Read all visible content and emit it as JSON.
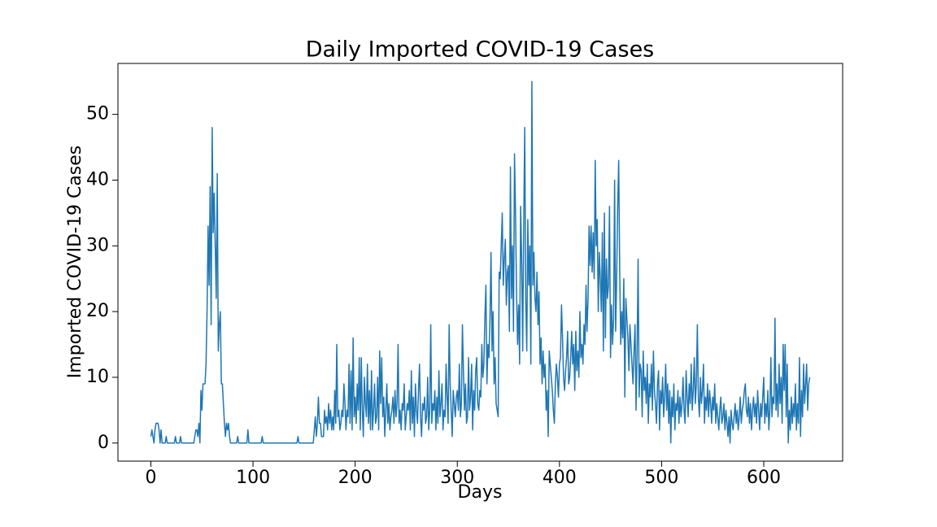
{
  "chart_data": {
    "type": "line",
    "title": "Daily Imported COVID-19 Cases",
    "x_label": "Days",
    "y_label": "Imported COVID-19 Cases",
    "color": "#1f77b4",
    "xlim": [
      -32.25,
      677.25
    ],
    "xticks": [
      0,
      100,
      200,
      300,
      400,
      500,
      600
    ],
    "ylim": [
      -2.75,
      57.75
    ],
    "yticks": [
      0,
      10,
      20,
      30,
      40,
      50
    ],
    "x": [
      0,
      1,
      2,
      3,
      4,
      5,
      6,
      7,
      8,
      9,
      10,
      11,
      12,
      13,
      14,
      15,
      16,
      17,
      18,
      19,
      20,
      21,
      22,
      23,
      24,
      25,
      26,
      27,
      28,
      29,
      30,
      31,
      32,
      33,
      34,
      35,
      36,
      37,
      38,
      39,
      40,
      41,
      42,
      43,
      44,
      45,
      46,
      47,
      48,
      49,
      50,
      51,
      52,
      53,
      54,
      55,
      56,
      57,
      58,
      59,
      60,
      61,
      62,
      63,
      64,
      65,
      66,
      67,
      68,
      69,
      70,
      71,
      72,
      73,
      74,
      75,
      76,
      77,
      78,
      79,
      80,
      81,
      82,
      83,
      84,
      85,
      86,
      87,
      88,
      89,
      90,
      91,
      92,
      93,
      94,
      95,
      96,
      97,
      98,
      99,
      100,
      101,
      102,
      103,
      104,
      105,
      106,
      107,
      108,
      109,
      110,
      111,
      112,
      113,
      114,
      115,
      116,
      117,
      118,
      119,
      120,
      121,
      122,
      123,
      124,
      125,
      126,
      127,
      128,
      129,
      130,
      131,
      132,
      133,
      134,
      135,
      136,
      137,
      138,
      139,
      140,
      141,
      142,
      143,
      144,
      145,
      146,
      147,
      148,
      149,
      150,
      151,
      152,
      153,
      154,
      155,
      156,
      157,
      158,
      159,
      160,
      161,
      162,
      163,
      164,
      165,
      166,
      167,
      168,
      169,
      170,
      171,
      172,
      173,
      174,
      175,
      176,
      177,
      178,
      179,
      180,
      181,
      182,
      183,
      184,
      185,
      186,
      187,
      188,
      189,
      190,
      191,
      192,
      193,
      194,
      195,
      196,
      197,
      198,
      199,
      200,
      201,
      202,
      203,
      204,
      205,
      206,
      207,
      208,
      209,
      210,
      211,
      212,
      213,
      214,
      215,
      216,
      217,
      218,
      219,
      220,
      221,
      222,
      223,
      224,
      225,
      226,
      227,
      228,
      229,
      230,
      231,
      232,
      233,
      234,
      235,
      236,
      237,
      238,
      239,
      240,
      241,
      242,
      243,
      244,
      245,
      246,
      247,
      248,
      249,
      250,
      251,
      252,
      253,
      254,
      255,
      256,
      257,
      258,
      259,
      260,
      261,
      262,
      263,
      264,
      265,
      266,
      267,
      268,
      269,
      270,
      271,
      272,
      273,
      274,
      275,
      276,
      277,
      278,
      279,
      280,
      281,
      282,
      283,
      284,
      285,
      286,
      287,
      288,
      289,
      290,
      291,
      292,
      293,
      294,
      295,
      296,
      297,
      298,
      299,
      300,
      301,
      302,
      303,
      304,
      305,
      306,
      307,
      308,
      309,
      310,
      311,
      312,
      313,
      314,
      315,
      316,
      317,
      318,
      319,
      320,
      321,
      322,
      323,
      324,
      325,
      326,
      327,
      328,
      329,
      330,
      331,
      332,
      333,
      334,
      335,
      336,
      337,
      338,
      339,
      340,
      341,
      342,
      343,
      344,
      345,
      346,
      347,
      348,
      349,
      350,
      351,
      352,
      353,
      354,
      355,
      356,
      357,
      358,
      359,
      360,
      361,
      362,
      363,
      364,
      365,
      366,
      367,
      368,
      369,
      370,
      371,
      372,
      373,
      374,
      375,
      376,
      377,
      378,
      379,
      380,
      381,
      382,
      383,
      384,
      385,
      386,
      387,
      388,
      389,
      390,
      391,
      392,
      393,
      394,
      395,
      396,
      397,
      398,
      399,
      400,
      401,
      402,
      403,
      404,
      405,
      406,
      407,
      408,
      409,
      410,
      411,
      412,
      413,
      414,
      415,
      416,
      417,
      418,
      419,
      420,
      421,
      422,
      423,
      424,
      425,
      426,
      427,
      428,
      429,
      430,
      431,
      432,
      433,
      434,
      435,
      436,
      437,
      438,
      439,
      440,
      441,
      442,
      443,
      444,
      445,
      446,
      447,
      448,
      449,
      450,
      451,
      452,
      453,
      454,
      455,
      456,
      457,
      458,
      459,
      460,
      461,
      462,
      463,
      464,
      465,
      466,
      467,
      468,
      469,
      470,
      471,
      472,
      473,
      474,
      475,
      476,
      477,
      478,
      479,
      480,
      481,
      482,
      483,
      484,
      485,
      486,
      487,
      488,
      489,
      490,
      491,
      492,
      493,
      494,
      495,
      496,
      497,
      498,
      499,
      500,
      501,
      502,
      503,
      504,
      505,
      506,
      507,
      508,
      509,
      510,
      511,
      512,
      513,
      514,
      515,
      516,
      517,
      518,
      519,
      520,
      521,
      522,
      523,
      524,
      525,
      526,
      527,
      528,
      529,
      530,
      531,
      532,
      533,
      534,
      535,
      536,
      537,
      538,
      539,
      540,
      541,
      542,
      543,
      544,
      545,
      546,
      547,
      548,
      549,
      550,
      551,
      552,
      553,
      554,
      555,
      556,
      557,
      558,
      559,
      560,
      561,
      562,
      563,
      564,
      565,
      566,
      567,
      568,
      569,
      570,
      571,
      572,
      573,
      574,
      575,
      576,
      577,
      578,
      579,
      580,
      581,
      582,
      583,
      584,
      585,
      586,
      587,
      588,
      589,
      590,
      591,
      592,
      593,
      594,
      595,
      596,
      597,
      598,
      599,
      600,
      601,
      602,
      603,
      604,
      605,
      606,
      607,
      608,
      609,
      610,
      611,
      612,
      613,
      614,
      615,
      616,
      617,
      618,
      619,
      620,
      621,
      622,
      623,
      624,
      625,
      626,
      627,
      628,
      629,
      630,
      631,
      632,
      633,
      634,
      635,
      636,
      637,
      638,
      639,
      640,
      641,
      642,
      643,
      644,
      645
    ],
    "values": [
      1,
      2,
      1,
      0,
      2,
      3,
      3,
      3,
      2,
      0,
      2,
      0,
      0,
      0,
      0,
      1,
      0,
      0,
      0,
      0,
      0,
      0,
      0,
      0,
      1,
      0,
      0,
      0,
      0,
      1,
      0,
      0,
      0,
      0,
      0,
      0,
      0,
      0,
      0,
      0,
      0,
      0,
      0,
      1,
      2,
      2,
      1,
      3,
      0,
      8,
      5,
      9,
      9,
      9,
      12,
      20,
      33,
      24,
      39,
      18,
      48,
      32,
      38,
      30,
      22,
      41,
      14,
      18,
      20,
      9,
      9,
      6,
      3,
      1,
      3,
      2,
      3,
      1,
      0,
      0,
      0,
      0,
      0,
      0,
      0,
      1,
      0,
      0,
      0,
      0,
      0,
      0,
      0,
      0,
      0,
      2,
      0,
      0,
      0,
      0,
      0,
      0,
      0,
      0,
      0,
      0,
      0,
      0,
      0,
      1,
      0,
      0,
      0,
      0,
      0,
      0,
      0,
      0,
      0,
      0,
      0,
      0,
      0,
      0,
      0,
      0,
      0,
      0,
      0,
      0,
      0,
      0,
      0,
      0,
      0,
      0,
      0,
      0,
      0,
      0,
      0,
      0,
      0,
      0,
      1,
      0,
      0,
      0,
      0,
      0,
      0,
      0,
      0,
      0,
      0,
      0,
      0,
      0,
      0,
      0,
      2,
      4,
      1,
      3,
      7,
      3,
      3,
      1,
      1,
      1,
      5,
      3,
      4,
      2,
      6,
      3,
      5,
      2,
      4,
      2,
      8,
      3,
      15,
      4,
      5,
      2,
      3,
      5,
      4,
      9,
      6,
      2,
      5,
      4,
      12,
      3,
      11,
      2,
      16,
      4,
      7,
      3,
      9,
      5,
      13,
      2,
      13,
      5,
      1,
      10,
      6,
      4,
      12,
      3,
      8,
      2,
      11,
      2,
      5,
      9,
      3,
      4,
      10,
      2,
      14,
      6,
      13,
      4,
      7,
      1,
      5,
      9,
      3,
      6,
      2,
      4,
      5,
      7,
      3,
      8,
      4,
      6,
      15,
      3,
      5,
      2,
      6,
      5,
      9,
      2,
      4,
      6,
      5,
      8,
      2,
      11,
      3,
      7,
      1,
      9,
      5,
      3,
      8,
      12,
      4,
      1,
      6,
      5,
      7,
      3,
      4,
      10,
      2,
      5,
      18,
      3,
      6,
      5,
      8,
      2,
      7,
      3,
      11,
      4,
      6,
      9,
      2,
      5,
      4,
      12,
      7,
      3,
      18,
      9,
      5,
      1,
      8,
      6,
      4,
      7,
      8,
      5,
      12,
      4,
      6,
      18,
      11,
      5,
      9,
      3,
      4,
      13,
      5,
      7,
      12,
      2,
      8,
      5,
      11,
      13,
      6,
      5,
      8,
      7,
      15,
      10,
      12,
      19,
      24,
      9,
      15,
      13,
      19,
      29,
      14,
      20,
      9,
      13,
      6,
      5,
      4,
      26,
      25,
      30,
      35,
      24,
      28,
      31,
      21,
      26,
      27,
      17,
      42,
      22,
      30,
      17,
      44,
      35,
      23,
      15,
      21,
      12,
      36,
      28,
      14,
      33,
      48,
      22,
      14,
      34,
      24,
      30,
      12,
      55,
      24,
      29,
      22,
      20,
      26,
      18,
      23,
      12,
      16,
      9,
      14,
      10,
      12,
      5,
      8,
      1,
      14,
      12,
      10,
      8,
      5,
      3,
      9,
      12,
      10,
      7,
      12,
      13,
      21,
      16,
      10,
      8,
      11,
      13,
      17,
      9,
      10,
      13,
      17,
      12,
      15,
      8,
      17,
      11,
      14,
      10,
      20,
      13,
      15,
      12,
      18,
      15,
      24,
      17,
      22,
      33,
      27,
      33,
      26,
      32,
      25,
      43,
      30,
      34,
      20,
      29,
      25,
      20,
      32,
      14,
      35,
      16,
      28,
      22,
      24,
      36,
      13,
      21,
      15,
      19,
      40,
      17,
      25,
      36,
      43,
      26,
      15,
      20,
      16,
      25,
      7,
      22,
      19,
      16,
      11,
      18,
      15,
      12,
      9,
      14,
      18,
      5,
      14,
      28,
      7,
      12,
      11,
      4,
      14,
      8,
      10,
      6,
      12,
      3,
      9,
      7,
      12,
      5,
      14,
      8,
      6,
      3,
      9,
      11,
      2,
      8,
      6,
      10,
      4,
      7,
      12,
      5,
      9,
      3,
      8,
      0,
      7,
      4,
      9,
      2,
      6,
      5,
      8,
      3,
      7,
      4,
      6,
      10,
      5,
      3,
      11,
      7,
      4,
      9,
      6,
      12,
      5,
      8,
      13,
      6,
      9,
      18,
      7,
      4,
      10,
      6,
      8,
      12,
      3,
      7,
      5,
      9,
      4,
      8,
      6,
      3,
      7,
      5,
      9,
      3,
      6,
      4,
      2,
      5,
      7,
      3,
      4,
      6,
      2,
      5,
      3,
      1,
      4,
      0,
      5,
      3,
      2,
      4,
      6,
      3,
      5,
      2,
      4,
      7,
      3,
      5,
      6,
      8,
      9,
      5,
      4,
      7,
      3,
      6,
      2,
      5,
      7,
      4,
      6,
      3,
      8,
      5,
      2,
      6,
      4,
      7,
      10,
      3,
      6,
      4,
      8,
      2,
      5,
      13,
      4,
      7,
      6,
      19,
      5,
      9,
      4,
      12,
      6,
      10,
      3,
      15,
      8,
      15,
      4,
      12,
      0,
      5,
      2,
      7,
      3,
      6,
      4,
      9,
      2,
      6,
      3,
      13,
      1,
      8,
      4,
      12,
      6,
      9,
      12,
      5,
      9,
      10
    ]
  }
}
